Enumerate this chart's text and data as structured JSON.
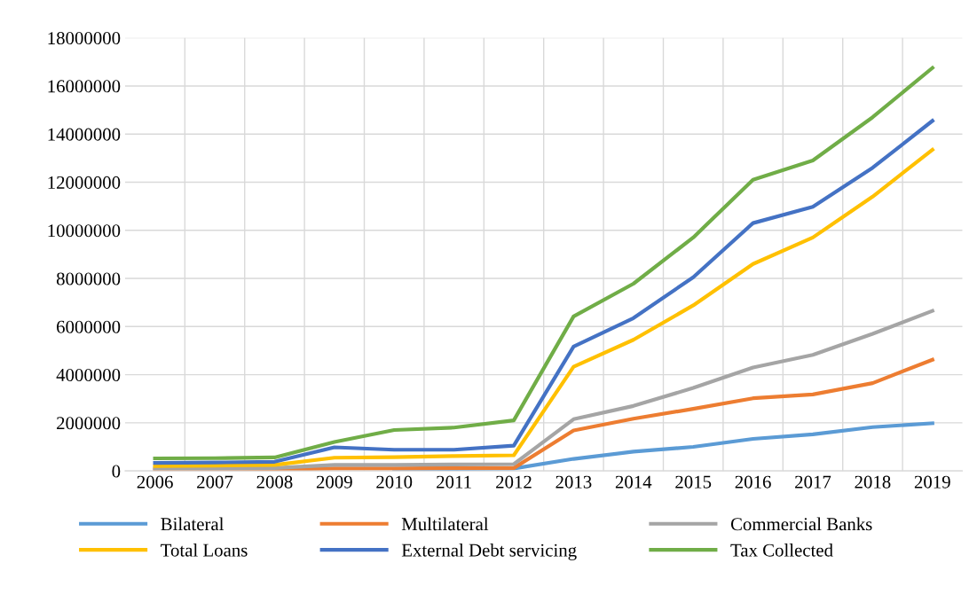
{
  "chart_data": {
    "type": "line",
    "categories": [
      "2006",
      "2007",
      "2008",
      "2009",
      "2010",
      "2011",
      "2012",
      "2013",
      "2014",
      "2015",
      "2016",
      "2017",
      "2018",
      "2019"
    ],
    "ylim": [
      0,
      18000000
    ],
    "yticks": [
      0,
      2000000,
      4000000,
      6000000,
      8000000,
      10000000,
      12000000,
      14000000,
      16000000,
      18000000
    ],
    "grid": true,
    "legend": "bottom",
    "marker": "none",
    "line_style": "solid",
    "series": [
      {
        "name": "Bilateral",
        "color": "#5b9bd5",
        "values": [
          null,
          null,
          null,
          null,
          60000,
          80000,
          100000,
          500000,
          800000,
          1000000,
          1330000,
          1520000,
          1820000,
          1980000
        ]
      },
      {
        "name": "Multilateral",
        "color": "#ed7d31",
        "values": [
          50000,
          50000,
          50000,
          100000,
          100000,
          120000,
          120000,
          1680000,
          2170000,
          2580000,
          3020000,
          3180000,
          3650000,
          4620000
        ]
      },
      {
        "name": "Commercial Banks",
        "color": "#a5a5a5",
        "values": [
          100000,
          100000,
          120000,
          250000,
          250000,
          270000,
          280000,
          2150000,
          2700000,
          3450000,
          4300000,
          4820000,
          5700000,
          6650000
        ]
      },
      {
        "name": "Total Loans",
        "color": "#ffc000",
        "values": [
          200000,
          220000,
          250000,
          550000,
          570000,
          620000,
          650000,
          4330000,
          5450000,
          6880000,
          8600000,
          9700000,
          11400000,
          13350000
        ]
      },
      {
        "name": "External Debt servicing",
        "color": "#4472c4",
        "values": [
          330000,
          350000,
          380000,
          980000,
          880000,
          880000,
          1050000,
          5170000,
          6350000,
          8050000,
          10300000,
          10980000,
          12600000,
          14550000
        ]
      },
      {
        "name": "Tax Collected",
        "color": "#70ad47",
        "values": [
          520000,
          530000,
          560000,
          1200000,
          1700000,
          1800000,
          2100000,
          6420000,
          7780000,
          9700000,
          12100000,
          12900000,
          14700000,
          16750000
        ]
      }
    ]
  }
}
